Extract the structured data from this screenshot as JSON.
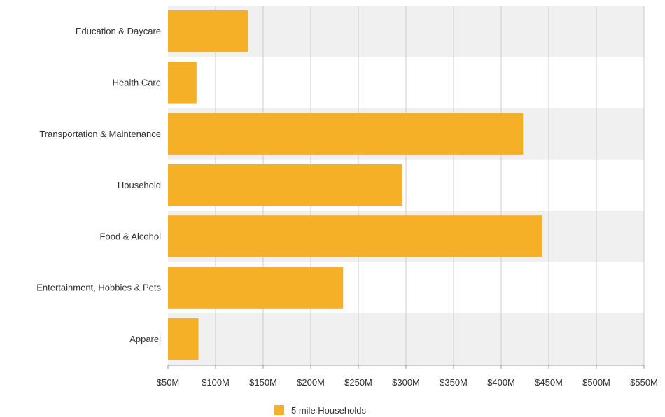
{
  "chart_data": {
    "type": "bar",
    "orientation": "horizontal",
    "categories": [
      "Education & Daycare",
      "Health Care",
      "Transportation & Maintenance",
      "Household",
      "Food & Alcohol",
      "Entertainment, Hobbies & Pets",
      "Apparel"
    ],
    "series": [
      {
        "name": "5 mile Households",
        "values": [
          134,
          80,
          423,
          296,
          443,
          234,
          82
        ]
      }
    ],
    "xlim": [
      50,
      550
    ],
    "x_ticks": [
      50,
      100,
      150,
      200,
      250,
      300,
      350,
      400,
      450,
      500,
      550
    ],
    "x_tick_labels": [
      "$50M",
      "$100M",
      "$150M",
      "$200M",
      "$250M",
      "$300M",
      "$350M",
      "$400M",
      "$450M",
      "$500M",
      "$550M"
    ],
    "grid": true,
    "alternating_band": true,
    "legend_position": "bottom-center",
    "colors": {
      "bar": "#F5B028",
      "band": "#F0F0F0",
      "gridline": "#CCCCCC",
      "axis": "#999999",
      "text": "#333333"
    }
  }
}
